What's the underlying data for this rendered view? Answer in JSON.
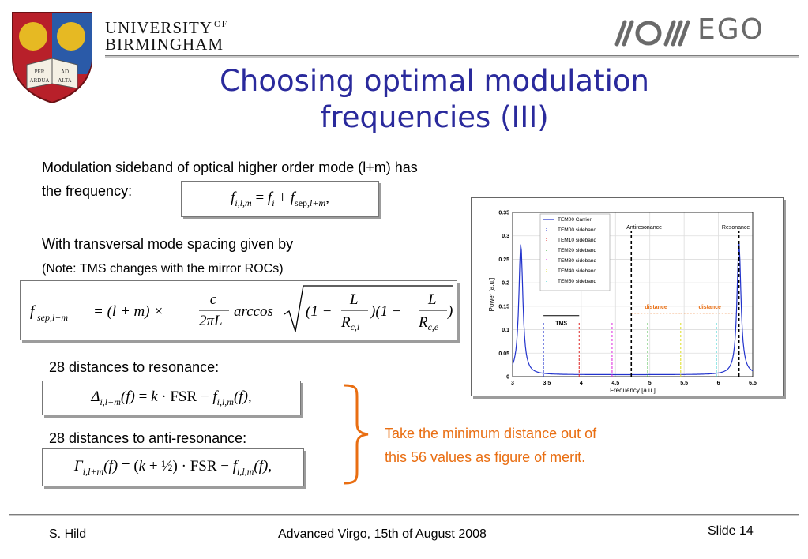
{
  "header": {
    "university_line1": "UNIVERSITY",
    "university_of": "OF",
    "university_line2": "BIRMINGHAM",
    "crest_text": [
      "PER",
      "AD",
      "ARDUA",
      "ALTA"
    ],
    "partner_logo_text": "EGO",
    "title_line1": "Choosing optimal modulation",
    "title_line2": "frequencies (III)"
  },
  "body": {
    "intro_line1": "Modulation sideband of optical higher order mode (l+m) has",
    "intro_line2": "the frequency:",
    "tms_line": "With transversal mode spacing given by",
    "tms_note": "(Note: TMS changes with the mirror ROCs)",
    "resonance_label": "28 distances to resonance:",
    "antiresonance_label": "28 distances to anti-resonance:",
    "merit_line1": "Take the minimum distance out of",
    "merit_line2": "this 56 values as figure of merit."
  },
  "chart_data": {
    "type": "line",
    "xlabel": "Frequency [a.u.]",
    "ylabel": "Power [a.u.]",
    "xlim": [
      3,
      6.5
    ],
    "ylim": [
      0,
      0.35
    ],
    "x_ticks": [
      "3",
      "3.5",
      "4",
      "4.5",
      "5",
      "5.5",
      "6",
      "6.5"
    ],
    "y_ticks": [
      "0",
      "0.05",
      "0.1",
      "0.15",
      "0.2",
      "0.25",
      "0.3",
      "0.35"
    ],
    "grid": true,
    "legend_position": "top-left",
    "legend": [
      {
        "label": "TEM00 Carrier",
        "color": "#2233cc"
      },
      {
        "label": "TEM00 sideband",
        "color": "#2233cc"
      },
      {
        "label": "TEM10 sideband",
        "color": "#dd2222"
      },
      {
        "label": "TEM20 sideband",
        "color": "#22aa22"
      },
      {
        "label": "TEM30 sideband",
        "color": "#dd22dd"
      },
      {
        "label": "TEM40 sideband",
        "color": "#dddd22"
      },
      {
        "label": "TEM50 sideband",
        "color": "#22cccc"
      }
    ],
    "sideband_lines": [
      {
        "x": 3.45,
        "color": "#2233cc"
      },
      {
        "x": 3.97,
        "color": "#dd2222"
      },
      {
        "x": 4.45,
        "color": "#dd22dd"
      },
      {
        "x": 4.97,
        "color": "#22aa22"
      },
      {
        "x": 5.45,
        "color": "#dddd22"
      },
      {
        "x": 5.97,
        "color": "#22cccc"
      }
    ],
    "antiresonance": {
      "x": 4.73,
      "label": "Antiresonance"
    },
    "resonance": {
      "x": 6.3,
      "label": "Resonance"
    },
    "annotations": {
      "tms": "TMS",
      "distance1": "distance",
      "distance2": "distance"
    }
  },
  "footer": {
    "author": "S. Hild",
    "event": "Advanced Virgo, 15th of August 2008",
    "slide": "Slide 14"
  },
  "colors": {
    "title": "#2a2a9c",
    "accent": "#e96e12",
    "crest_red": "#b8202a",
    "crest_blue": "#2a5aa8",
    "crest_gold": "#e6b923"
  }
}
